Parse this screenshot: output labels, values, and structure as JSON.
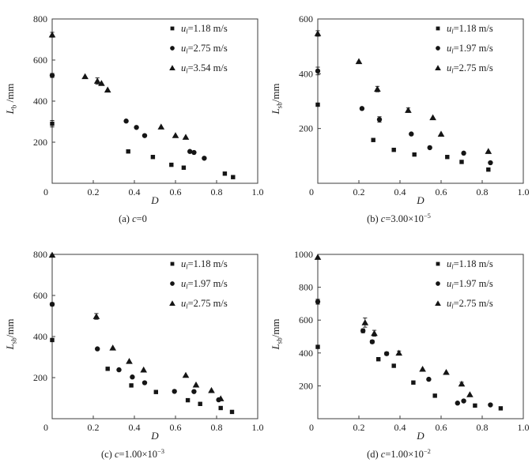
{
  "figure_title": "",
  "chart_data": [
    {
      "id": "a",
      "type": "scatter",
      "caption_label": "(a)",
      "caption_var": "c",
      "caption_value": "=0",
      "caption_exp": "",
      "xvar": "D",
      "yvar": "L",
      "ysub": "b",
      "yrest": " /mm",
      "xlim": [
        0,
        1.0
      ],
      "ylim": [
        0,
        800
      ],
      "origin_label": "0",
      "xticks": [
        0.2,
        0.4,
        0.6,
        0.8,
        1.0
      ],
      "xtick_labels": [
        "0.2",
        "0.4",
        "0.6",
        "0.8",
        "1.0"
      ],
      "yticks": [
        200,
        400,
        600,
        800
      ],
      "ytick_labels": [
        "200",
        "400",
        "600",
        "800"
      ],
      "grid": false,
      "legend_position": "top-right",
      "legend": [
        {
          "marker": "square",
          "var": "u",
          "sub": "l",
          "rest": "=1.18 m/s"
        },
        {
          "marker": "circle",
          "var": "u",
          "sub": "l",
          "rest": "=2.75 m/s"
        },
        {
          "marker": "triangle",
          "var": "u",
          "sub": "l",
          "rest": "=3.54 m/s"
        }
      ],
      "series": [
        {
          "name": "ul=1.18 m/s",
          "marker": "square",
          "points": [
            [
              0,
              290,
              16
            ],
            [
              0.37,
              155
            ],
            [
              0.49,
              128
            ],
            [
              0.58,
              90
            ],
            [
              0.64,
              76
            ],
            [
              0.84,
              47
            ],
            [
              0.88,
              30
            ]
          ]
        },
        {
          "name": "ul=2.75 m/s",
          "marker": "circle",
          "points": [
            [
              0,
              525,
              10
            ],
            [
              0.36,
              303
            ],
            [
              0.41,
              272
            ],
            [
              0.45,
              232
            ],
            [
              0.67,
              155
            ],
            [
              0.69,
              150
            ],
            [
              0.74,
              122
            ]
          ]
        },
        {
          "name": "ul=3.54 m/s",
          "marker": "triangle",
          "points": [
            [
              0,
              723,
              12
            ],
            [
              0.16,
              520
            ],
            [
              0.22,
              498,
              15
            ],
            [
              0.24,
              487
            ],
            [
              0.27,
              455
            ],
            [
              0.53,
              275
            ],
            [
              0.6,
              233
            ],
            [
              0.65,
              225
            ]
          ]
        }
      ]
    },
    {
      "id": "b",
      "type": "scatter",
      "caption_label": "(b)",
      "caption_var": "c",
      "caption_value": "=3.00×10",
      "caption_exp": "−5",
      "xvar": "D",
      "yvar": "L",
      "ysub": "sb",
      "yrest": "/mm",
      "xlim": [
        0,
        1.0
      ],
      "ylim": [
        0,
        600
      ],
      "origin_label": "0",
      "xticks": [
        0.2,
        0.4,
        0.6,
        0.8,
        1.0
      ],
      "xtick_labels": [
        "0.2",
        "0.4",
        "0.6",
        "0.8",
        "1.0"
      ],
      "yticks": [
        200,
        400,
        600
      ],
      "ytick_labels": [
        "200",
        "400",
        "600"
      ],
      "grid": false,
      "legend_position": "top-right",
      "legend": [
        {
          "marker": "square",
          "var": "u",
          "sub": "l",
          "rest": "=1.18 m/s"
        },
        {
          "marker": "circle",
          "var": "u",
          "sub": "l",
          "rest": "=1.97 m/s"
        },
        {
          "marker": "triangle",
          "var": "u",
          "sub": "l",
          "rest": "=2.75 m/s"
        }
      ],
      "series": [
        {
          "name": "ul=1.18 m/s",
          "marker": "square",
          "points": [
            [
              0,
              287
            ],
            [
              0.27,
              158
            ],
            [
              0.37,
              122
            ],
            [
              0.47,
              105
            ],
            [
              0.63,
              96
            ],
            [
              0.7,
              78
            ],
            [
              0.83,
              50
            ]
          ]
        },
        {
          "name": "ul=1.97 m/s",
          "marker": "circle",
          "points": [
            [
              0,
              410,
              14
            ],
            [
              0.215,
              273
            ],
            [
              0.3,
              233,
              10
            ],
            [
              0.455,
              180
            ],
            [
              0.545,
              130
            ],
            [
              0.71,
              110
            ],
            [
              0.84,
              75
            ]
          ]
        },
        {
          "name": "ul=2.75 m/s",
          "marker": "triangle",
          "points": [
            [
              0,
              547,
              10
            ],
            [
              0.2,
              445
            ],
            [
              0.29,
              344,
              10
            ],
            [
              0.44,
              267,
              8
            ],
            [
              0.56,
              240
            ],
            [
              0.6,
              180
            ],
            [
              0.83,
              117
            ]
          ]
        }
      ]
    },
    {
      "id": "c",
      "type": "scatter",
      "caption_label": "(c)",
      "caption_var": "c",
      "caption_value": "=1.00×10",
      "caption_exp": "−3",
      "xvar": "D",
      "yvar": "L",
      "ysub": "sb",
      "yrest": "/mm",
      "xlim": [
        0,
        1.0
      ],
      "ylim": [
        0,
        800
      ],
      "origin_label": "0",
      "xticks": [
        0.2,
        0.4,
        0.6,
        0.8,
        1.0
      ],
      "xtick_labels": [
        "0.2",
        "0.4",
        "0.6",
        "0.8",
        "1.0"
      ],
      "yticks": [
        200,
        400,
        600,
        800
      ],
      "ytick_labels": [
        "200",
        "400",
        "600",
        "800"
      ],
      "grid": false,
      "legend_position": "top-right",
      "legend": [
        {
          "marker": "square",
          "var": "u",
          "sub": "l",
          "rest": "=1.18 m/s"
        },
        {
          "marker": "circle",
          "var": "u",
          "sub": "l",
          "rest": "=1.97 m/s"
        },
        {
          "marker": "triangle",
          "var": "u",
          "sub": "l",
          "rest": "=2.75 m/s"
        }
      ],
      "series": [
        {
          "name": "ul=1.18 m/s",
          "marker": "square",
          "points": [
            [
              0,
              383
            ],
            [
              0.27,
              243
            ],
            [
              0.385,
              162
            ],
            [
              0.505,
              130
            ],
            [
              0.66,
              90
            ],
            [
              0.72,
              72
            ],
            [
              0.82,
              52
            ],
            [
              0.875,
              33
            ]
          ]
        },
        {
          "name": "ul=1.97 m/s",
          "marker": "circle",
          "points": [
            [
              0,
              557,
              8
            ],
            [
              0.22,
              340
            ],
            [
              0.325,
              238
            ],
            [
              0.39,
              203
            ],
            [
              0.45,
              175
            ],
            [
              0.595,
              133
            ],
            [
              0.69,
              132
            ],
            [
              0.81,
              92
            ]
          ]
        },
        {
          "name": "ul=2.75 m/s",
          "marker": "triangle",
          "points": [
            [
              0,
              797,
              10
            ],
            [
              0.215,
              498,
              14
            ],
            [
              0.295,
              345
            ],
            [
              0.375,
              280
            ],
            [
              0.445,
              238
            ],
            [
              0.65,
              212
            ],
            [
              0.7,
              165
            ],
            [
              0.775,
              138
            ],
            [
              0.82,
              98
            ]
          ]
        }
      ]
    },
    {
      "id": "d",
      "type": "scatter",
      "caption_label": "(d)",
      "caption_var": "c",
      "caption_value": "=1.00×10",
      "caption_exp": "−2",
      "xvar": "D",
      "yvar": "L",
      "ysub": "sb",
      "yrest": "/mm",
      "xlim": [
        0,
        1.0
      ],
      "ylim": [
        0,
        1000
      ],
      "origin_label": "0",
      "xticks": [
        0.2,
        0.4,
        0.6,
        0.8,
        1.0
      ],
      "xtick_labels": [
        "0.2",
        "0.4",
        "0.6",
        "0.8",
        "1.0"
      ],
      "yticks": [
        200,
        400,
        600,
        800,
        1000
      ],
      "ytick_labels": [
        "200",
        "400",
        "600",
        "800",
        "1000"
      ],
      "grid": false,
      "legend_position": "top-right",
      "legend": [
        {
          "marker": "square",
          "var": "u",
          "sub": "l",
          "rest": "=1.18 m/s"
        },
        {
          "marker": "circle",
          "var": "u",
          "sub": "l",
          "rest": "=1.97 m/s"
        },
        {
          "marker": "triangle",
          "var": "u",
          "sub": "l",
          "rest": "=2.75 m/s"
        }
      ],
      "series": [
        {
          "name": "ul=1.18 m/s",
          "marker": "square",
          "points": [
            [
              0,
              437
            ],
            [
              0.295,
              362
            ],
            [
              0.37,
              322
            ],
            [
              0.465,
              220
            ],
            [
              0.57,
              140
            ],
            [
              0.765,
              80
            ],
            [
              0.89,
              63
            ]
          ]
        },
        {
          "name": "ul=1.97 m/s",
          "marker": "circle",
          "points": [
            [
              0,
              712,
              15
            ],
            [
              0.22,
              535,
              12
            ],
            [
              0.265,
              468,
              10
            ],
            [
              0.335,
              396,
              10
            ],
            [
              0.54,
              240
            ],
            [
              0.68,
              95
            ],
            [
              0.71,
              108
            ],
            [
              0.84,
              84
            ]
          ]
        },
        {
          "name": "ul=2.75 m/s",
          "marker": "triangle",
          "points": [
            [
              0,
              983
            ],
            [
              0.23,
              585,
              28
            ],
            [
              0.275,
              520,
              18
            ],
            [
              0.395,
              400,
              12
            ],
            [
              0.51,
              302
            ],
            [
              0.625,
              283
            ],
            [
              0.7,
              212,
              10
            ],
            [
              0.74,
              147
            ]
          ]
        }
      ]
    }
  ],
  "colors": {
    "marker": "#151515",
    "axis": "#3c3c3c",
    "text": "#1c1c1c",
    "background": "#ffffff"
  }
}
